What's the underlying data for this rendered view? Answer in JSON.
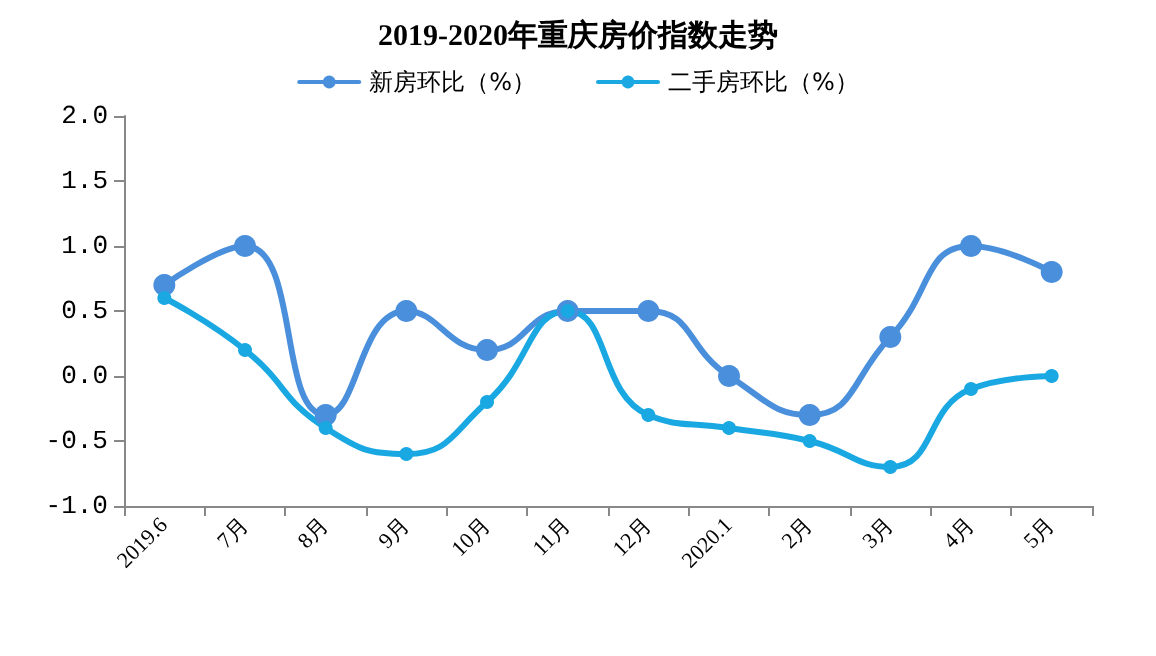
{
  "chart_data": {
    "type": "line",
    "title": "2019-2020年重庆房价指数走势",
    "categories": [
      "2019.6",
      "7月",
      "8月",
      "9月",
      "10月",
      "11月",
      "12月",
      "2020.1",
      "2月",
      "3月",
      "4月",
      "5月"
    ],
    "series": [
      {
        "name": "新房环比（%）",
        "color": "#4a8fdb",
        "values": [
          0.7,
          1.0,
          -0.3,
          0.5,
          0.2,
          0.5,
          0.5,
          0.0,
          -0.3,
          0.3,
          1.0,
          0.8
        ]
      },
      {
        "name": "二手房环比（%）",
        "color": "#1aa8e2",
        "values": [
          0.6,
          0.2,
          -0.4,
          -0.6,
          -0.2,
          0.5,
          -0.3,
          -0.4,
          -0.5,
          -0.7,
          -0.1,
          0.0
        ]
      }
    ],
    "ylim": [
      -1.0,
      2.0
    ],
    "yticks": [
      {
        "value": -1,
        "label": "-1.0"
      },
      -0.5,
      {
        "value": 0,
        "label": "0.0"
      },
      0.5,
      {
        "value": 1,
        "label": "1.0"
      },
      1.5,
      {
        "value": 2,
        "label": "2.0"
      }
    ],
    "grid": false,
    "legend": "top",
    "marker": "circle",
    "line_style": "solid"
  }
}
